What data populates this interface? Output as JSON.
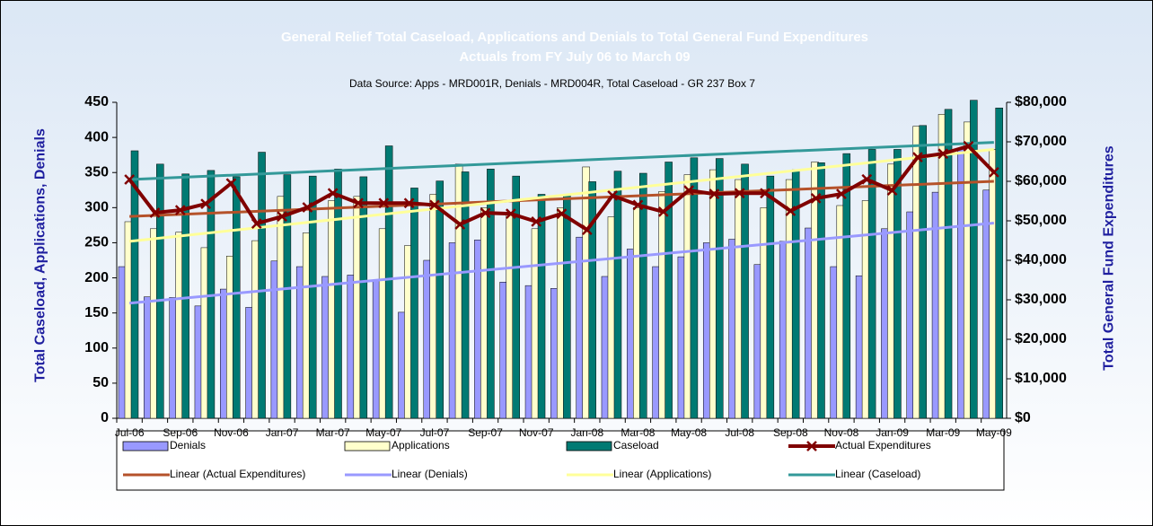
{
  "chart_data": {
    "type": "bar",
    "title": "General Relief Total Caseload, Applications and Denials to Total General Fund Expenditures",
    "subtitle": "Actuals from FY July 06 to March 09",
    "note": "Data Source:  Apps - MRD001R, Denials - MRD004R, Total Caseload - GR 237 Box 7",
    "y_label": "Total Caseload, Applications, Denials",
    "y2_label": "Total General Fund Expenditures",
    "categories": [
      "Jul-06",
      null,
      "Sep-06",
      null,
      "Nov-06",
      null,
      "Jan-07",
      null,
      "Mar-07",
      null,
      "May-07",
      null,
      "Jul-07",
      null,
      "Sep-07",
      null,
      "Nov-07",
      null,
      "Jan-08",
      null,
      "Mar-08",
      null,
      "May-08",
      null,
      "Jul-08",
      null,
      "Sep-08",
      null,
      "Nov-08",
      null,
      "Jan-09",
      null,
      "Mar-09",
      null,
      "May-09"
    ],
    "series": [
      {
        "name": "Denials",
        "color": "#9999ff",
        "values": [
          216,
          173,
          172,
          160,
          184,
          158,
          224,
          216,
          202,
          204,
          196,
          151,
          225,
          250,
          254,
          194,
          189,
          185,
          258,
          202,
          241,
          216,
          230,
          250,
          255,
          219,
          252,
          271,
          216,
          203,
          270,
          294,
          322,
          384,
          325
        ]
      },
      {
        "name": "Applications",
        "color": "#ffffcc",
        "values": [
          280,
          270,
          265,
          243,
          231,
          253,
          316,
          264,
          310,
          316,
          270,
          246,
          319,
          362,
          300,
          290,
          270,
          300,
          358,
          287,
          300,
          323,
          347,
          354,
          340,
          300,
          340,
          365,
          303,
          310,
          362,
          416,
          433,
          422,
          383
        ]
      },
      {
        "name": "Caseload",
        "color": "#007a73",
        "values": [
          381,
          362,
          348,
          353,
          344,
          379,
          347,
          345,
          355,
          344,
          388,
          328,
          338,
          351,
          355,
          345,
          319,
          318,
          337,
          352,
          349,
          365,
          371,
          370,
          362,
          345,
          354,
          364,
          377,
          383,
          383,
          417,
          440,
          453,
          442
        ]
      },
      {
        "name": "Actual Expenditures",
        "color": "#800000",
        "type": "line",
        "axis": "y2",
        "values": [
          60455,
          52045,
          52700,
          54300,
          59500,
          49300,
          51100,
          53400,
          57000,
          54500,
          54500,
          54500,
          54000,
          49100,
          52000,
          51800,
          49800,
          51800,
          47700,
          56400,
          54000,
          52300,
          57700,
          56800,
          57000,
          57000,
          52500,
          55700,
          56800,
          60500,
          57700,
          66100,
          67000,
          68900,
          62300
        ]
      }
    ],
    "trendlines": [
      {
        "name": "Linear (Actual Expenditures)",
        "color": "#b5522a",
        "axis": "y2",
        "start": 51100,
        "end": 60000
      },
      {
        "name": "Linear (Denials)",
        "color": "#9999ff",
        "start": 164,
        "end": 278
      },
      {
        "name": "Linear (Applications)",
        "color": "#ffff99",
        "start": 252,
        "end": 383
      },
      {
        "name": "Linear (Caseload)",
        "color": "#339999",
        "start": 340,
        "end": 393
      }
    ],
    "ylim": [
      0,
      450
    ],
    "yticks": [
      0,
      50,
      100,
      150,
      200,
      250,
      300,
      350,
      400,
      450
    ],
    "y2lim": [
      0,
      80000
    ],
    "y2ticks": [
      {
        "value": 0,
        "label": "$0"
      },
      {
        "value": 10000,
        "label": "$10,000"
      },
      {
        "value": 20000,
        "label": "$20,000"
      },
      {
        "value": 30000,
        "label": "$30,000"
      },
      {
        "value": 40000,
        "label": "$40,000"
      },
      {
        "value": 50000,
        "label": "$50,000"
      },
      {
        "value": 60000,
        "label": "$60,000"
      },
      {
        "value": 70000,
        "label": "$70,000"
      },
      {
        "value": 80000,
        "label": "$80,000"
      }
    ],
    "legend": "bottom"
  }
}
